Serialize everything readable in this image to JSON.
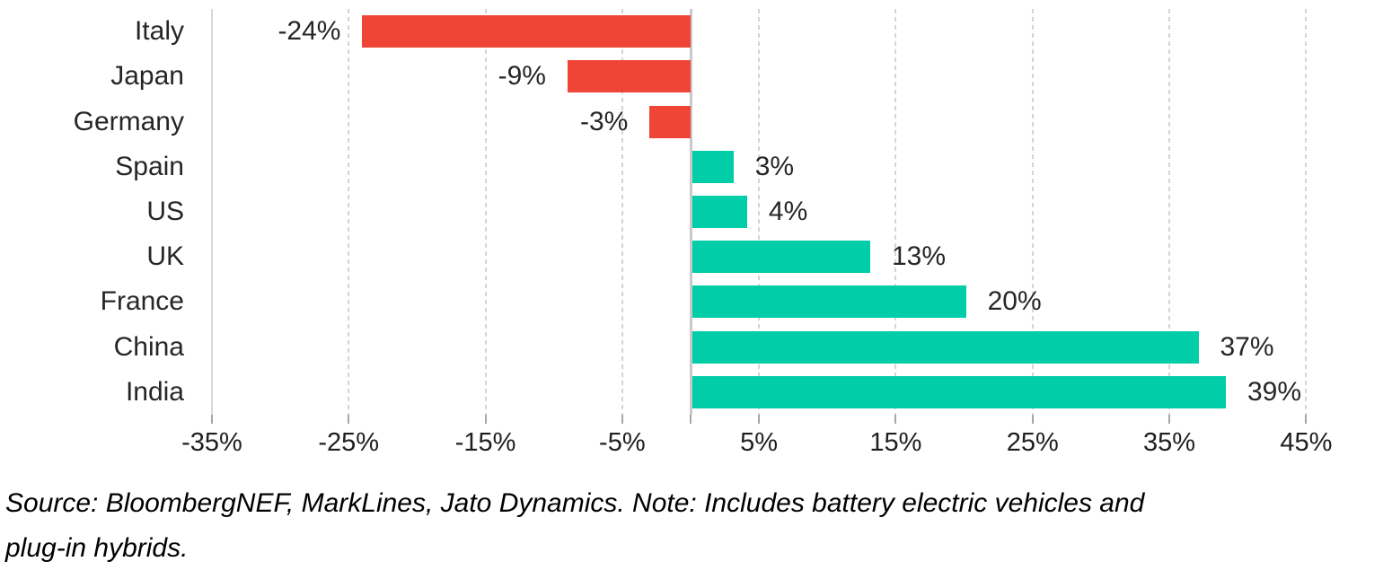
{
  "chart_data": {
    "type": "bar",
    "orientation": "horizontal",
    "title": "",
    "xlabel": "",
    "ylabel": "",
    "categories": [
      "Italy",
      "Japan",
      "Germany",
      "Spain",
      "US",
      "UK",
      "France",
      "China",
      "India"
    ],
    "values": [
      -24,
      -9,
      -3,
      3,
      4,
      13,
      20,
      37,
      39
    ],
    "value_labels": [
      "-24%",
      "-9%",
      "-3%",
      "3%",
      "4%",
      "13%",
      "20%",
      "37%",
      "39%"
    ],
    "x_ticks": [
      -35,
      -25,
      -15,
      -5,
      5,
      15,
      25,
      35,
      45
    ],
    "x_tick_labels": [
      "-35%",
      "-25%",
      "-15%",
      "-5%",
      "5%",
      "15%",
      "25%",
      "35%",
      "45%"
    ],
    "xlim": [
      -35,
      51
    ],
    "grid": "vertical-dashed",
    "legend": "none",
    "colors": {
      "negative_bar": "#EE4536",
      "positive_bar": "#01CDA9",
      "gridline": "#d5d5d5",
      "zero_line": "#c9c9c9",
      "text": "#262626"
    },
    "source_note": [
      "Source: BloombergNEF, MarkLines, Jato Dynamics. Note: Includes battery electric vehicles and",
      "plug-in hybrids."
    ]
  }
}
